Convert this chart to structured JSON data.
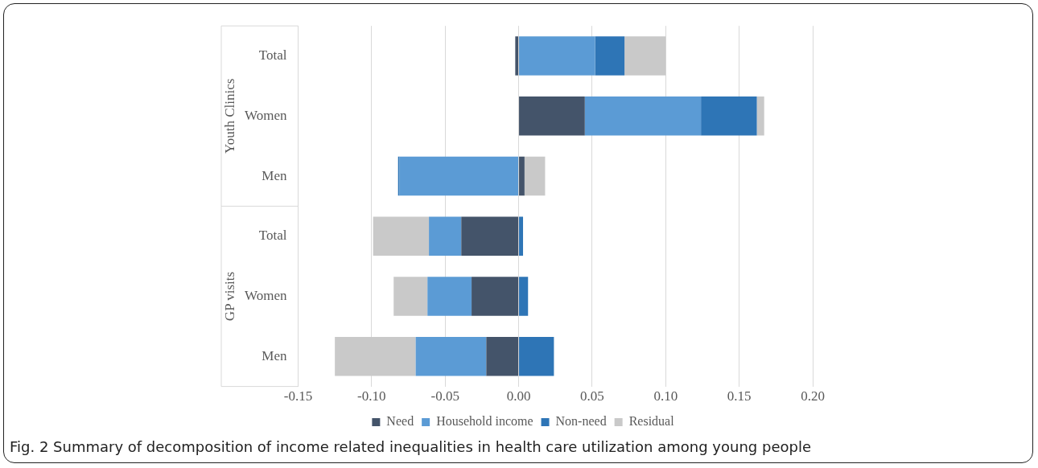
{
  "chart_data": {
    "type": "bar",
    "orientation": "horizontal",
    "stacked": true,
    "title": "Fig. 2 Summary of decomposition of income related inequalities in health care utilization among young people",
    "categories": [
      "Total",
      "Women",
      "Men",
      "Total",
      "Women",
      "Men"
    ],
    "series": [
      {
        "name": "Need",
        "color": "#44546a",
        "values": [
          -0.0023,
          0.045,
          0.004,
          -0.039,
          -0.032,
          -0.022
        ]
      },
      {
        "name": "Household income",
        "color": "#5b9bd5",
        "values": [
          0.052,
          0.079,
          -0.081,
          -0.022,
          -0.03,
          -0.048
        ]
      },
      {
        "name": "Non-need",
        "color": "#2e75b6",
        "values": [
          0.02,
          0.038,
          -0.001,
          0.003,
          0.0064,
          0.024
        ]
      },
      {
        "name": "Residual",
        "color": "#c9c9c9",
        "values": [
          0.028,
          0.005,
          0.014,
          -0.038,
          -0.023,
          -0.055
        ]
      }
    ],
    "xlim": [
      -0.15,
      0.2
    ],
    "xticks": [
      {
        "value": -0.15,
        "label": "-0.15"
      },
      {
        "value": -0.1,
        "label": "-0.10"
      },
      {
        "value": -0.05,
        "label": "-0.05"
      },
      {
        "value": 0,
        "label": "0.00"
      },
      {
        "value": 0.05,
        "label": "0.05"
      },
      {
        "value": 0.1,
        "label": "0.10"
      },
      {
        "value": 0.15,
        "label": "0.15"
      },
      {
        "value": 0.2,
        "label": "0.20"
      }
    ],
    "annotations": [
      "Youth Clinics",
      "GP visits"
    ],
    "grid": "x",
    "legend": "bottom"
  }
}
